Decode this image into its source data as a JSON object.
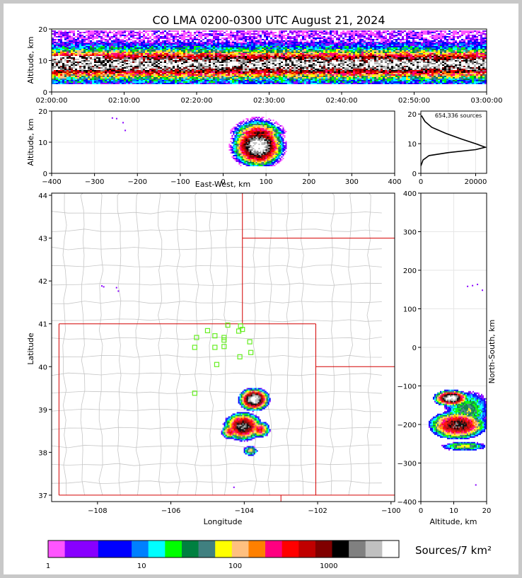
{
  "title": "CO LMA 0200-0300 UTC August 21, 2024",
  "time_height": {
    "ylabel": "Altitude, km",
    "y_ticks": [
      "0",
      "10",
      "20"
    ],
    "x_ticks": [
      "02:00:00",
      "02:10:00",
      "02:20:00",
      "02:30:00",
      "02:40:00",
      "02:50:00",
      "03:00:00"
    ]
  },
  "ew_alt": {
    "ylabel": "Altitude, km",
    "xlabel": "East-West, km",
    "x_ticks": [
      "−400",
      "−300",
      "−200",
      "−100",
      "0",
      "100",
      "200",
      "300",
      "400"
    ],
    "y_ticks": [
      "0",
      "10",
      "20"
    ]
  },
  "hist": {
    "label": "654,336 sources",
    "x_ticks": [
      "0",
      "20000"
    ],
    "y_ticks": [
      "0",
      "10",
      "20"
    ]
  },
  "plan": {
    "xlabel": "Longitude",
    "ylabel": "Latitude",
    "x_ticks": [
      "−108",
      "−106",
      "−104",
      "−102",
      "−100"
    ],
    "y_ticks": [
      "37",
      "38",
      "39",
      "40",
      "41",
      "42",
      "43",
      "44"
    ]
  },
  "ns_alt": {
    "xlabel": "Altitude, km",
    "ylabel": "North-South, km",
    "x_ticks": [
      "0",
      "10",
      "20"
    ],
    "y_ticks": [
      "400",
      "300",
      "200",
      "100",
      "0",
      "−100",
      "−200",
      "−300",
      "−400"
    ]
  },
  "colorbar": {
    "label": "Sources/7 km²",
    "tick_labels": [
      "1",
      "10",
      "100",
      "1000"
    ],
    "colors": [
      "#ff55ff",
      "#8800ff",
      "#8800ff",
      "#0000ff",
      "#0000ff",
      "#0080ff",
      "#00ffff",
      "#00ff00",
      "#008040",
      "#408080",
      "#ffff00",
      "#ffc080",
      "#ff8000",
      "#ff0080",
      "#ff0000",
      "#c00000",
      "#800000",
      "#000000",
      "#808080",
      "#c0c0c0",
      "#ffffff"
    ]
  },
  "chart_data": [
    {
      "type": "heatmap",
      "panel": "time-height",
      "x_range": [
        "02:00:00",
        "03:00:00"
      ],
      "ylim": [
        0,
        20
      ],
      "notes_core_altitude_km": [
        7,
        11
      ],
      "grid": false
    },
    {
      "type": "heatmap",
      "panel": "east-west vs altitude",
      "xlim": [
        -400,
        400
      ],
      "ylim": [
        0,
        20
      ],
      "grid": true
    },
    {
      "type": "line",
      "panel": "altitude histogram",
      "x": [
        200,
        1500,
        4000,
        9000,
        15000,
        20000,
        23500,
        20000,
        10000,
        3000,
        800,
        200,
        0
      ],
      "y": [
        19.5,
        17.5,
        15.5,
        13.5,
        11.5,
        10,
        8.8,
        8,
        7,
        6,
        4.5,
        3,
        2.5
      ],
      "xlim": [
        0,
        24000
      ],
      "ylim": [
        0,
        21
      ]
    },
    {
      "type": "scatter",
      "panel": "plan view",
      "xlim": [
        -109.25,
        -99.9
      ],
      "ylim": [
        36.85,
        44.05
      ],
      "stations": [
        [
          -104.45,
          40.97
        ],
        [
          -104.1,
          40.95
        ],
        [
          -105.0,
          40.84
        ],
        [
          -104.8,
          40.72
        ],
        [
          -104.55,
          40.68
        ],
        [
          -104.15,
          40.83
        ],
        [
          -104.05,
          40.87
        ],
        [
          -105.3,
          40.68
        ],
        [
          -104.55,
          40.62
        ],
        [
          -103.85,
          40.58
        ],
        [
          -105.35,
          40.45
        ],
        [
          -104.8,
          40.45
        ],
        [
          -104.55,
          40.47
        ],
        [
          -103.82,
          40.33
        ],
        [
          -104.12,
          40.23
        ],
        [
          -104.75,
          40.05
        ],
        [
          -105.35,
          39.38
        ]
      ],
      "grid": false
    },
    {
      "type": "heatmap",
      "panel": "altitude vs north-south",
      "xlim": [
        0,
        20
      ],
      "ylim": [
        -400,
        400
      ],
      "grid": true
    }
  ]
}
